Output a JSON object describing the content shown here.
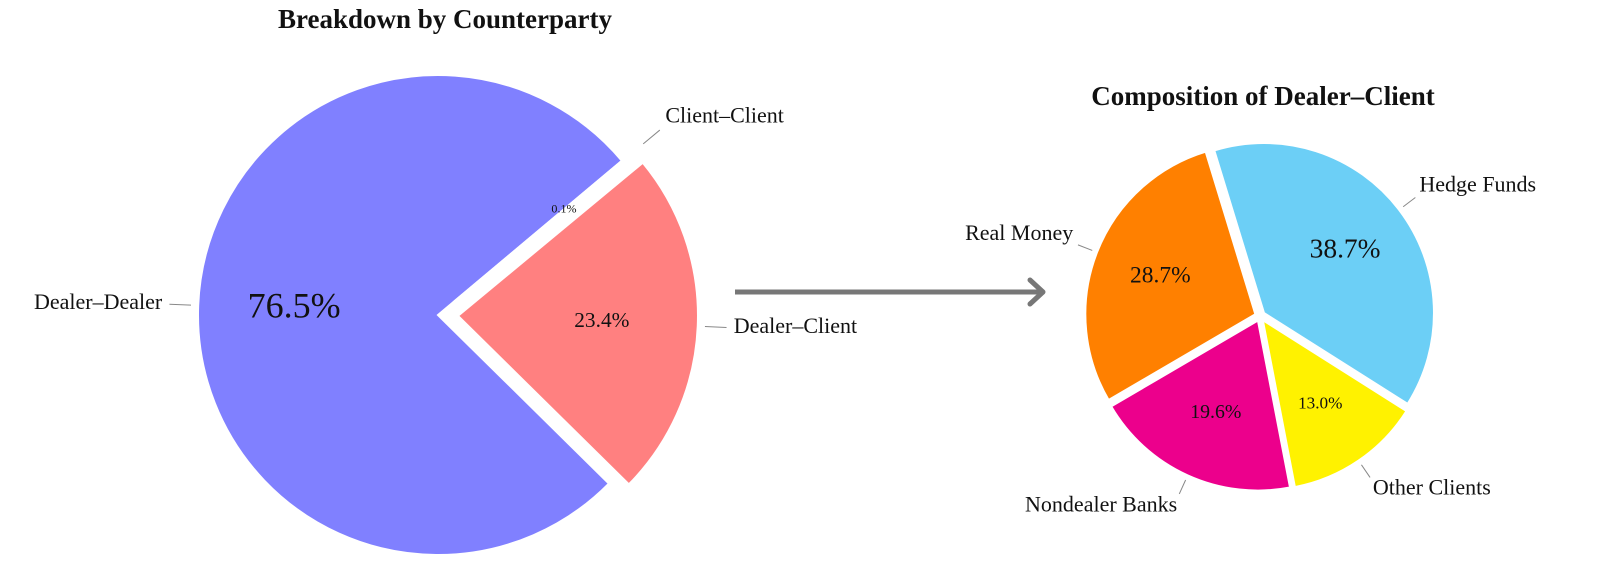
{
  "chart_data": [
    {
      "type": "pie",
      "title": "Breakdown by Counterparty",
      "categories": [
        "Dealer–Dealer",
        "Dealer–Client",
        "Client–Client"
      ],
      "values": [
        76.5,
        23.4,
        0.1
      ],
      "value_labels": [
        "76.5%",
        "23.4%",
        "0.1%"
      ],
      "colors": [
        "#8080ff",
        "#ff8080",
        "#33dd33"
      ]
    },
    {
      "type": "pie",
      "title": "Composition of Dealer–Client",
      "categories": [
        "Hedge Funds",
        "Other Clients",
        "Nondealer Banks",
        "Real Money"
      ],
      "values": [
        38.7,
        13.0,
        19.6,
        28.7
      ],
      "value_labels": [
        "38.7%",
        "13.0%",
        "19.6%",
        "28.7%"
      ],
      "colors": [
        "#6ccff6",
        "#fff200",
        "#ec008c",
        "#ff8000"
      ]
    }
  ]
}
